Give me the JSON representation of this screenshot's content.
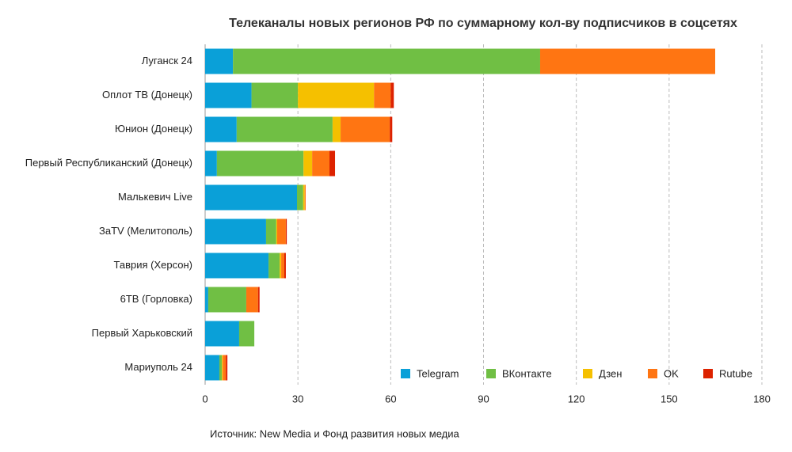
{
  "chart_data": {
    "type": "stacked-barh",
    "title": "Телеканалы новых регионов РФ по суммарному кол-ву подписчиков в соцсетях",
    "source": "Источник: New Media и Фонд развития новых медиа",
    "categories": [
      "Луганск 24",
      "Оплот ТВ (Донецк)",
      "Юнион (Донецк)",
      "Первый Республиканский (Донецк)",
      "Малькевич Live",
      "ЗаTV (Мелитополь)",
      "Таврия (Херсон)",
      "6ТВ (Горловка)",
      "Первый Харьковский",
      "Мариуполь 24"
    ],
    "series": [
      {
        "name": "Telegram",
        "color": "#0aa0d8",
        "values": [
          9,
          15,
          10.2,
          3.8,
          29.7,
          19.7,
          20.5,
          1,
          11,
          4.6
        ]
      },
      {
        "name": "ВКонтакте",
        "color": "#70bf44",
        "values": [
          99.3,
          15,
          31,
          28,
          2,
          3.3,
          3.6,
          12.3,
          4.9,
          0.8
        ]
      },
      {
        "name": "Дзен",
        "color": "#f5c000",
        "values": [
          0,
          24.6,
          2.6,
          2.8,
          0.5,
          0.3,
          0.5,
          0,
          0,
          0.3
        ]
      },
      {
        "name": "OK",
        "color": "#ff7512",
        "values": [
          56.6,
          5.4,
          15.9,
          5.6,
          0.3,
          2.8,
          1,
          3.8,
          0,
          1
        ]
      },
      {
        "name": "Rutube",
        "color": "#dd2200",
        "values": [
          0,
          1,
          0.8,
          1.8,
          0,
          0.3,
          0.5,
          0.5,
          0,
          0.5
        ]
      }
    ],
    "xlim": [
      0,
      180
    ],
    "xticks": [
      0,
      30,
      60,
      90,
      120,
      150,
      180
    ],
    "grid": true,
    "legend": "bottom-right"
  }
}
